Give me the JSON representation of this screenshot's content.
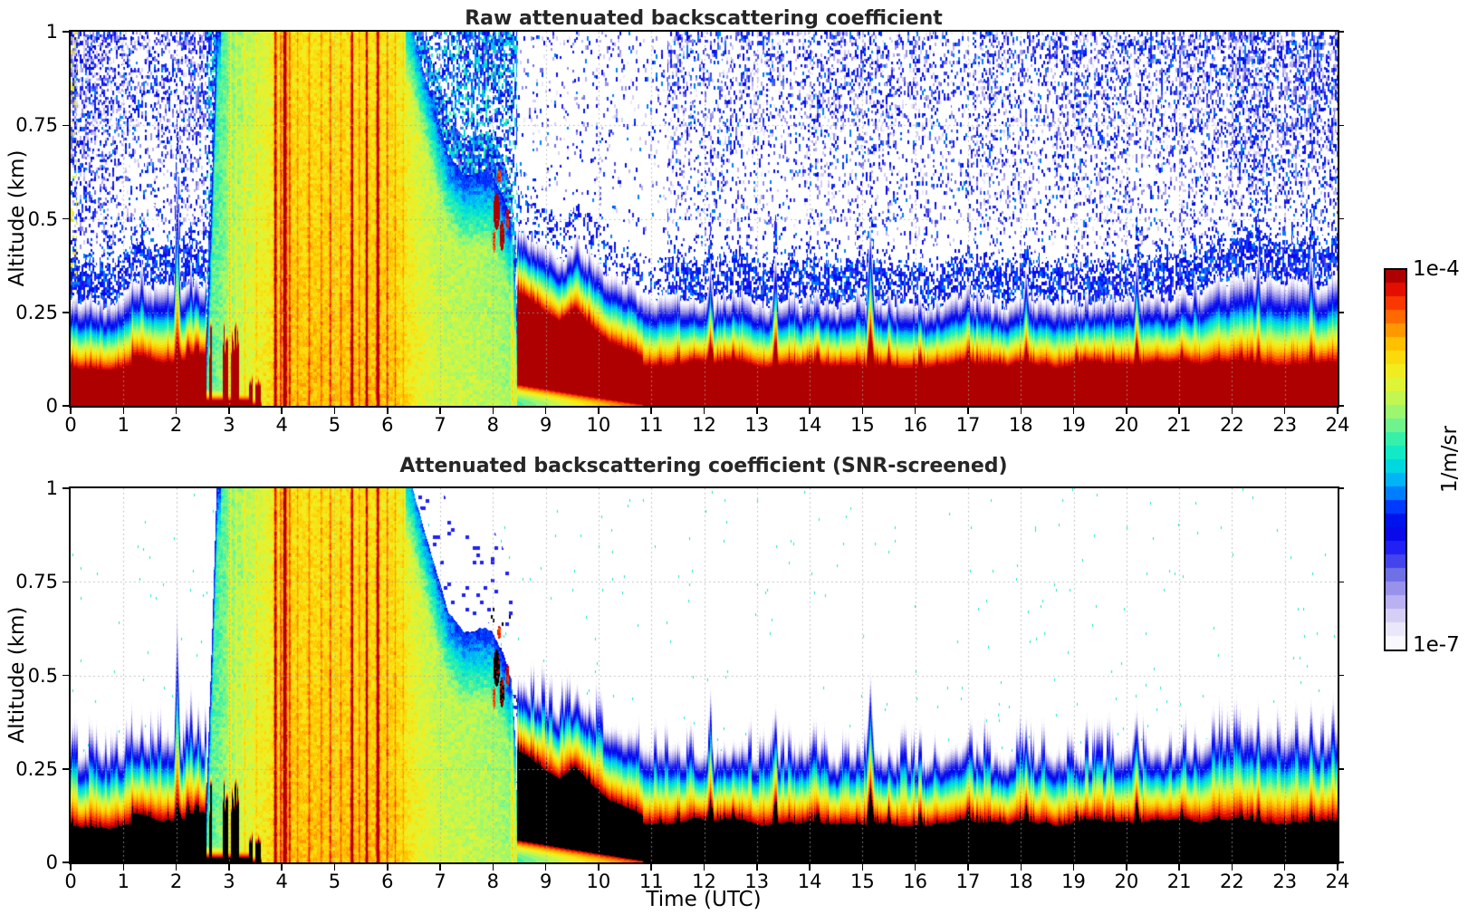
{
  "panel1": {
    "title": "Raw attenuated backscattering coefficient"
  },
  "panel2": {
    "title": "Attenuated backscattering coefficient (SNR-screened)"
  },
  "x_axis": {
    "label": "Time (UTC)",
    "ticks": [
      "0",
      "1",
      "2",
      "3",
      "4",
      "5",
      "6",
      "7",
      "8",
      "9",
      "10",
      "11",
      "12",
      "13",
      "14",
      "15",
      "16",
      "17",
      "18",
      "19",
      "20",
      "21",
      "22",
      "23",
      "24"
    ]
  },
  "y_axis": {
    "label": "Altitude (km)",
    "ticks": [
      "0",
      "0.25",
      "0.5",
      "0.75",
      "1"
    ]
  },
  "colorbar": {
    "top_label": "1e-4",
    "bottom_label": "1e-7",
    "unit": "1/m/sr"
  },
  "chart_data": {
    "type": "heatmap",
    "title_top": "Raw attenuated backscattering coefficient",
    "title_bottom": "Attenuated backscattering coefficient (SNR-screened)",
    "x": {
      "label": "Time (UTC)",
      "unit": "hours",
      "range": [
        0,
        24
      ],
      "ticks": [
        0,
        1,
        2,
        3,
        4,
        5,
        6,
        7,
        8,
        9,
        10,
        11,
        12,
        13,
        14,
        15,
        16,
        17,
        18,
        19,
        20,
        21,
        22,
        23,
        24
      ]
    },
    "y": {
      "label": "Altitude (km)",
      "unit": "km",
      "range": [
        0,
        1
      ],
      "ticks": [
        0,
        0.25,
        0.5,
        0.75,
        1
      ]
    },
    "value": {
      "unit": "1/m/sr",
      "scale": "log",
      "min": 1e-07,
      "max": 0.0001,
      "colormap_stops": [
        [
          0.0,
          "#ffffff"
        ],
        [
          0.035,
          "#f4f1fc"
        ],
        [
          0.075,
          "#e0dbf8"
        ],
        [
          0.115,
          "#c2baf2"
        ],
        [
          0.155,
          "#9e97ec"
        ],
        [
          0.195,
          "#7272e6"
        ],
        [
          0.235,
          "#4040ee"
        ],
        [
          0.275,
          "#1a1af8"
        ],
        [
          0.32,
          "#0000e0"
        ],
        [
          0.37,
          "#0030ff"
        ],
        [
          0.42,
          "#0090ff"
        ],
        [
          0.46,
          "#00c6f2"
        ],
        [
          0.5,
          "#00e6d2"
        ],
        [
          0.55,
          "#30f0ac"
        ],
        [
          0.6,
          "#80f584"
        ],
        [
          0.65,
          "#b8f858"
        ],
        [
          0.7,
          "#e2f434"
        ],
        [
          0.75,
          "#f9e714"
        ],
        [
          0.8,
          "#ffc400"
        ],
        [
          0.85,
          "#ff8c00"
        ],
        [
          0.9,
          "#ff4600"
        ],
        [
          0.94,
          "#ea1200"
        ],
        [
          0.97,
          "#c40000"
        ],
        [
          1.0,
          "#8d0000"
        ]
      ],
      "levels": 28,
      "over_color_screened": "#000000",
      "grid_color": "#aaaaaa"
    },
    "panels": [
      {
        "title": "Raw attenuated backscattering coefficient",
        "screened": false
      },
      {
        "title": "Attenuated backscattering coefficient (SNR-screened)",
        "screened": true
      }
    ],
    "features": {
      "plume": {
        "interval": [
          2.58,
          8.47
        ],
        "solid_top_path": [
          2.58,
          0.2,
          2.68,
          0.6,
          2.78,
          1.05,
          6.35,
          1.05,
          6.6,
          0.95,
          6.9,
          0.8,
          7.15,
          0.68,
          7.45,
          0.62,
          7.75,
          0.64,
          8.0,
          0.62,
          8.2,
          0.57,
          8.35,
          0.5,
          8.43,
          0.32,
          8.47,
          0.05
        ],
        "intensity_path": [
          2.6,
          0.15,
          3.2,
          0.55,
          3.7,
          0.8,
          4.0,
          1.0,
          6.1,
          1.0,
          6.5,
          0.75,
          7.0,
          0.55,
          7.6,
          0.5,
          8.1,
          0.45,
          8.45,
          0.3
        ],
        "streaks": [
          [
            3.02,
            0.4,
            0.018
          ],
          [
            3.14,
            0.22,
            0.012
          ],
          [
            3.3,
            0.28,
            0.014
          ],
          [
            3.52,
            0.2,
            0.012
          ],
          [
            3.88,
            0.85,
            0.02
          ],
          [
            3.98,
            0.5,
            0.012
          ],
          [
            4.06,
            1.15,
            0.024
          ],
          [
            4.15,
            0.55,
            0.012
          ],
          [
            4.3,
            0.25,
            0.01
          ],
          [
            4.52,
            0.35,
            0.014
          ],
          [
            4.75,
            0.3,
            0.012
          ],
          [
            4.92,
            0.45,
            0.014
          ],
          [
            5.12,
            0.3,
            0.012
          ],
          [
            5.33,
            0.9,
            0.018
          ],
          [
            5.47,
            0.35,
            0.01
          ],
          [
            5.61,
            0.85,
            0.016
          ],
          [
            5.82,
            0.95,
            0.02
          ],
          [
            6.0,
            0.4,
            0.012
          ],
          [
            6.15,
            0.3,
            0.01
          ],
          [
            6.3,
            0.25,
            0.01
          ],
          [
            8.37,
            0.45,
            0.02
          ],
          [
            8.44,
            0.5,
            0.015
          ]
        ]
      },
      "surface_layer": {
        "early_top_km": 0.082,
        "mid_top_km": 0.1,
        "late_top_km": 0.093,
        "spikes": [
          [
            11.5,
            0.02,
            0.05
          ],
          [
            12.12,
            0.05,
            0.07
          ],
          [
            12.55,
            0.025,
            0.04
          ],
          [
            13.35,
            0.065,
            0.06
          ],
          [
            14.15,
            0.03,
            0.05
          ],
          [
            15.15,
            0.095,
            0.08
          ],
          [
            15.5,
            0.03,
            0.04
          ],
          [
            16.1,
            0.035,
            0.05
          ],
          [
            17.0,
            0.03,
            0.05
          ],
          [
            18.1,
            0.04,
            0.05
          ],
          [
            19.05,
            0.03,
            0.04
          ],
          [
            20.2,
            0.055,
            0.06
          ],
          [
            21.05,
            0.03,
            0.04
          ],
          [
            22.5,
            0.035,
            0.05
          ],
          [
            23.5,
            0.04,
            0.05
          ]
        ],
        "shell_stretch": [
          [
            1.35,
            0.06,
            0.04
          ],
          [
            2.02,
            0.33,
            0.06
          ],
          [
            2.28,
            0.09,
            0.04
          ],
          [
            9.6,
            0.05,
            0.08
          ],
          [
            12.12,
            0.06,
            0.06
          ],
          [
            13.35,
            0.07,
            0.06
          ],
          [
            15.15,
            0.12,
            0.08
          ],
          [
            18.1,
            0.05,
            0.05
          ],
          [
            20.2,
            0.07,
            0.06
          ],
          [
            21.3,
            0.05,
            0.05
          ],
          [
            22.5,
            0.05,
            0.05
          ],
          [
            23.5,
            0.06,
            0.05
          ]
        ]
      },
      "residual_band": {
        "interval": [
          8.45,
          10.85
        ],
        "top_path": [
          8.45,
          0.3,
          8.8,
          0.27,
          9.25,
          0.215,
          9.55,
          0.25,
          9.85,
          0.215,
          10.2,
          0.165,
          10.55,
          0.145,
          10.85,
          0.125
        ],
        "bottom_path": [
          8.45,
          0.06,
          9.5,
          0.035,
          10.85,
          0.004
        ]
      },
      "cloud_blobs": [
        [
          8.07,
          0.52,
          0.06,
          0.05,
          -3.9
        ],
        [
          8.17,
          0.455,
          0.045,
          0.04,
          -4.05
        ],
        [
          8.28,
          0.5,
          0.03,
          0.03,
          -4.15
        ],
        [
          8.12,
          0.615,
          0.035,
          0.018,
          -4.25
        ],
        [
          8.02,
          0.44,
          0.03,
          0.03,
          -4.3
        ]
      ],
      "noise_speckle": {
        "density_pre_plume": 0.4,
        "density_plume_halo": 0.5,
        "density_post_plume": 0.08,
        "density_afternoon": 0.3,
        "density_evening": 0.42,
        "clear_interval": [
          8.45,
          11.3
        ]
      }
    }
  }
}
